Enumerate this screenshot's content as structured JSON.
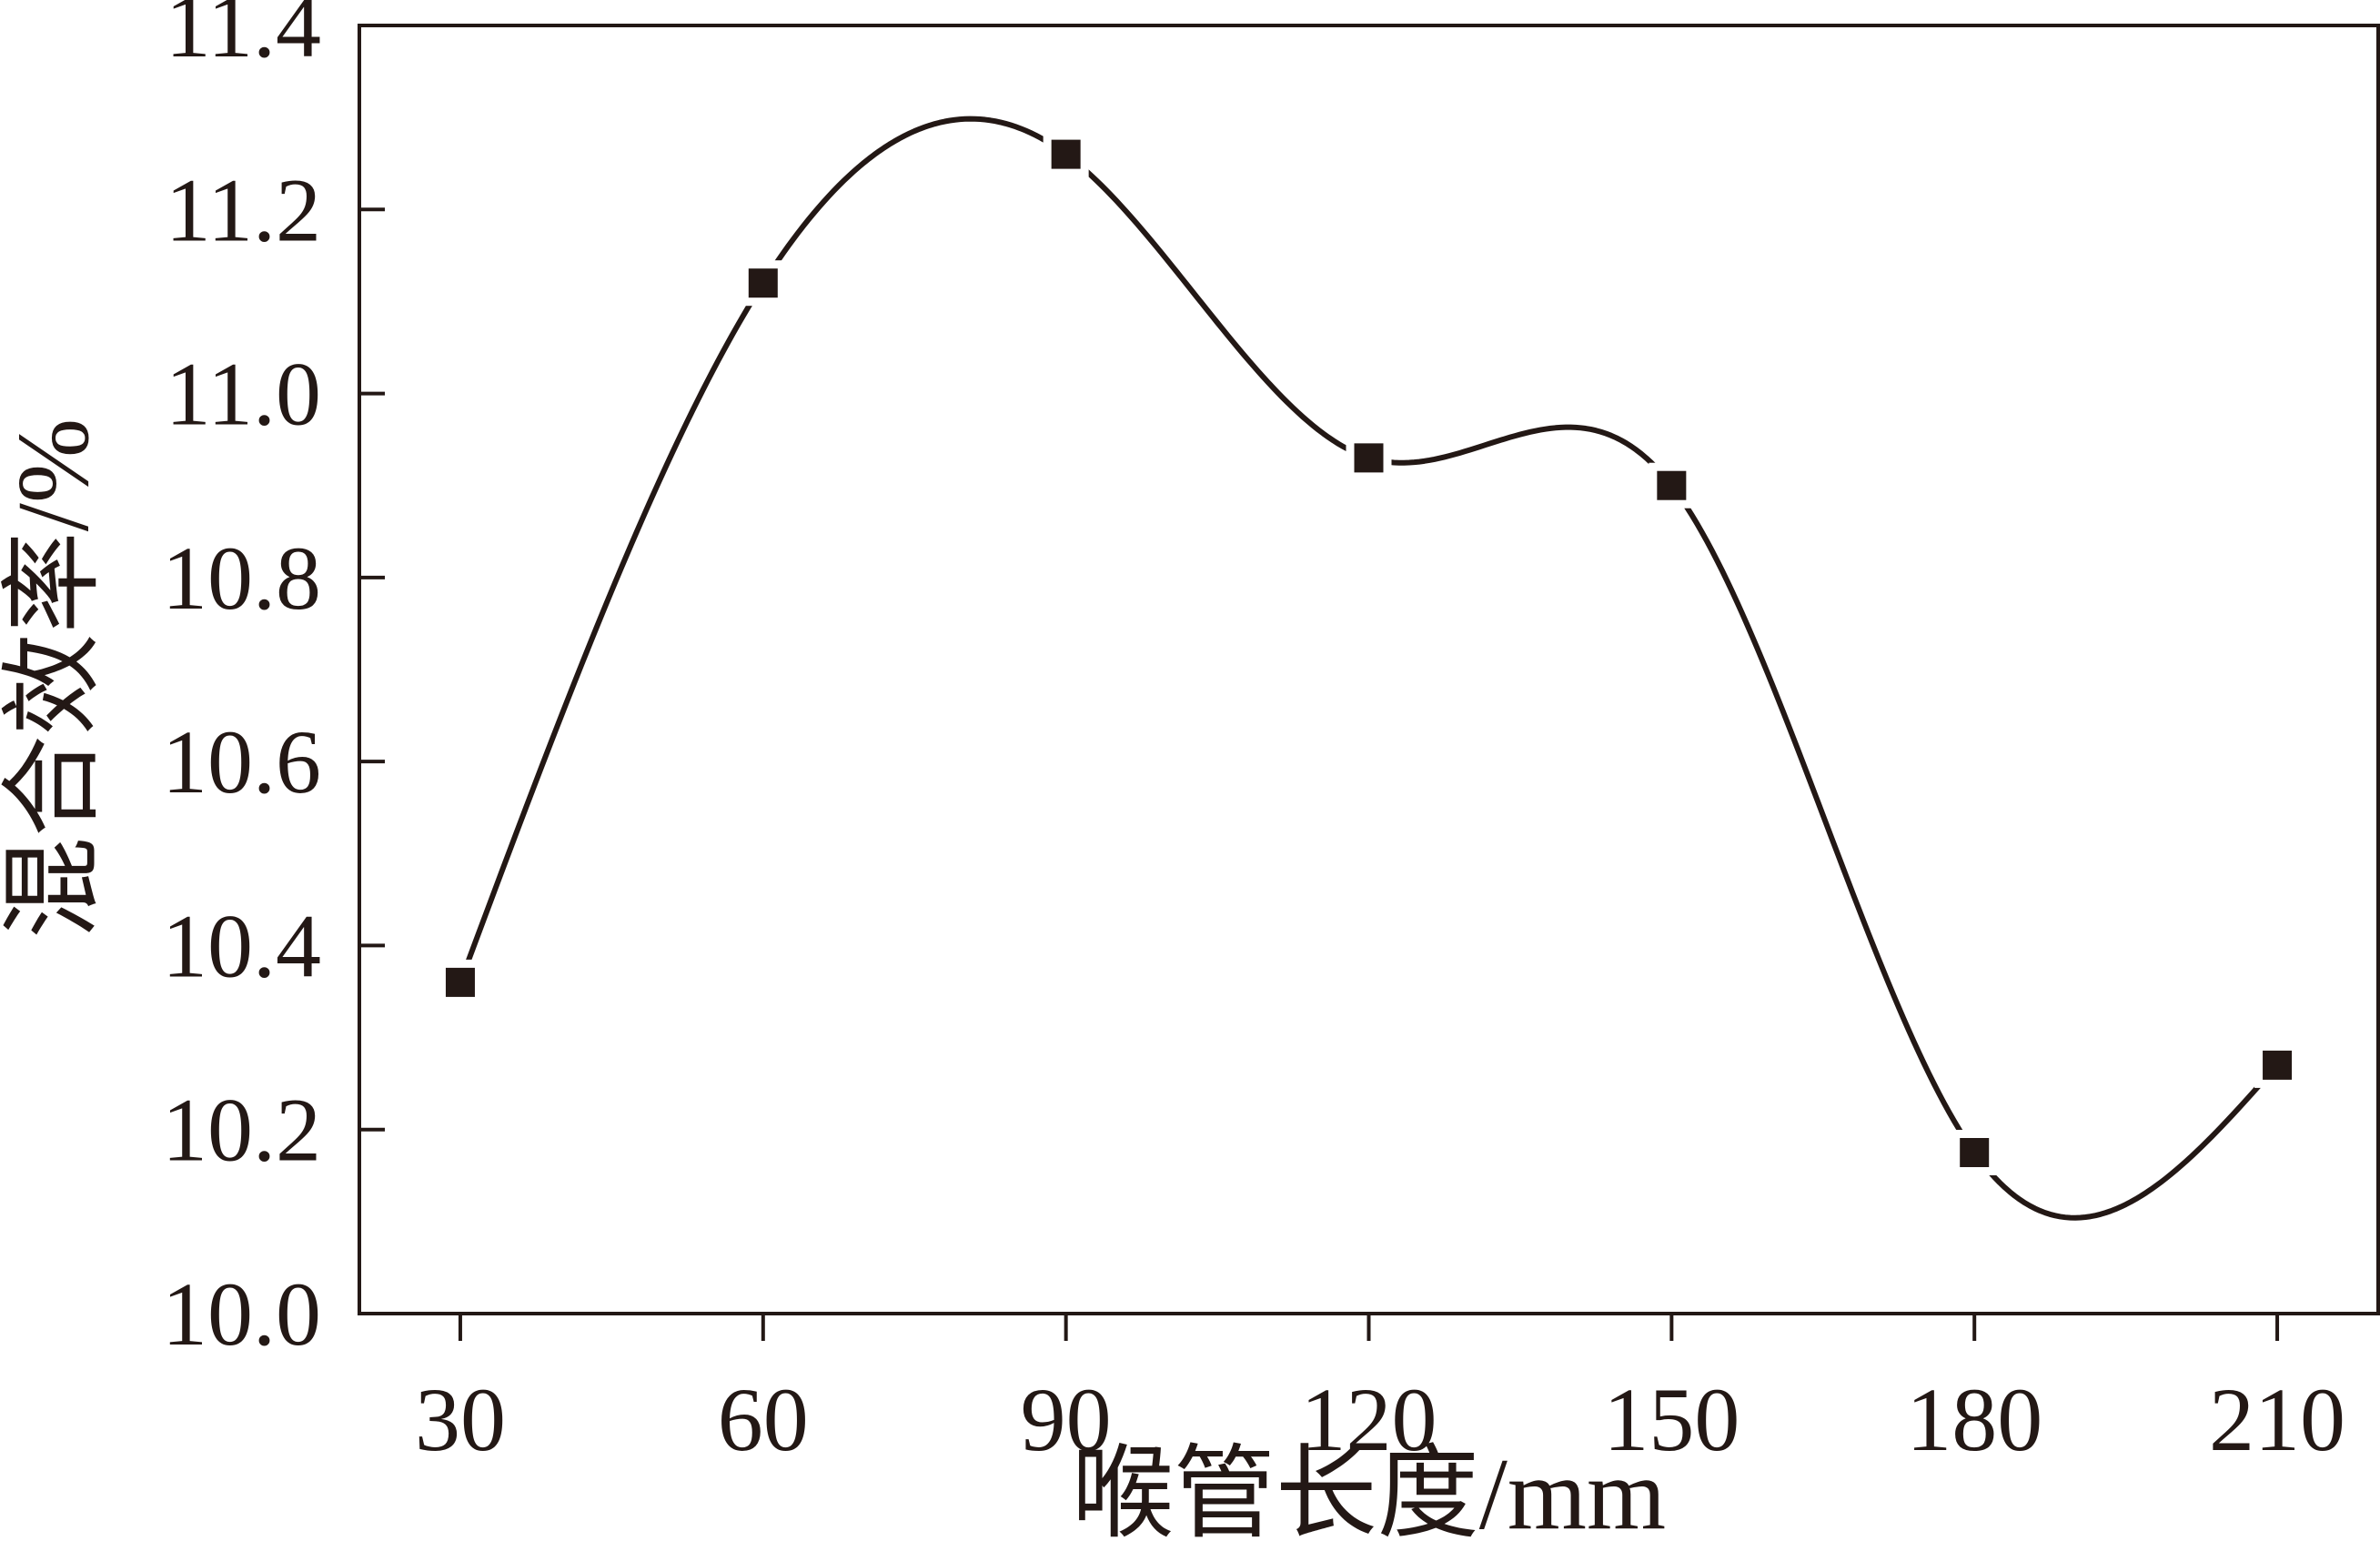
{
  "chart_data": {
    "type": "line",
    "title": "",
    "xlabel": "喉管长度/mm",
    "ylabel": "混合效率/%",
    "x": [
      30,
      60,
      90,
      120,
      150,
      180,
      210
    ],
    "series": [
      {
        "values": [
          10.36,
          11.12,
          11.26,
          10.93,
          10.9,
          10.175,
          10.27
        ],
        "marker": "square",
        "line": "smooth spline",
        "color": "#231815"
      }
    ],
    "x_ticks": [
      "30",
      "60",
      "90",
      "120",
      "150",
      "180",
      "210"
    ],
    "y_ticks": [
      "10.0",
      "10.2",
      "10.4",
      "10.6",
      "10.8",
      "11.0",
      "11.2",
      "11.4"
    ],
    "xlim": [
      20,
      220
    ],
    "ylim": [
      10.0,
      11.4
    ],
    "grid": false,
    "legend": "none",
    "colors": {
      "ink": "#231815",
      "background": "#ffffff"
    }
  }
}
